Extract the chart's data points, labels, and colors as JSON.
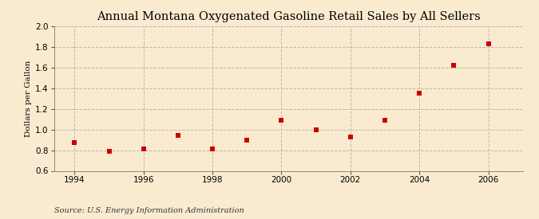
{
  "title": "Annual Montana Oxygenated Gasoline Retail Sales by All Sellers",
  "ylabel": "Dollars per Gallon",
  "source": "Source: U.S. Energy Information Administration",
  "background_color": "#faebd0",
  "years": [
    1994,
    1995,
    1996,
    1997,
    1998,
    1999,
    2000,
    2001,
    2002,
    2003,
    2004,
    2005,
    2006
  ],
  "values": [
    0.87,
    0.79,
    0.81,
    0.94,
    0.81,
    0.9,
    1.09,
    1.0,
    0.93,
    1.09,
    1.35,
    1.62,
    1.83
  ],
  "marker_color": "#cc0000",
  "marker": "s",
  "marker_size": 4,
  "xlim": [
    1993.4,
    2007.0
  ],
  "ylim": [
    0.6,
    2.0
  ],
  "yticks": [
    0.6,
    0.8,
    1.0,
    1.2,
    1.4,
    1.6,
    1.8,
    2.0
  ],
  "xticks": [
    1994,
    1996,
    1998,
    2000,
    2002,
    2004,
    2006
  ],
  "grid_color": "#aaaaaa",
  "grid_style": "--",
  "grid_alpha": 0.8,
  "title_fontsize": 10.5,
  "label_fontsize": 7.5,
  "tick_fontsize": 7.5,
  "source_fontsize": 7
}
